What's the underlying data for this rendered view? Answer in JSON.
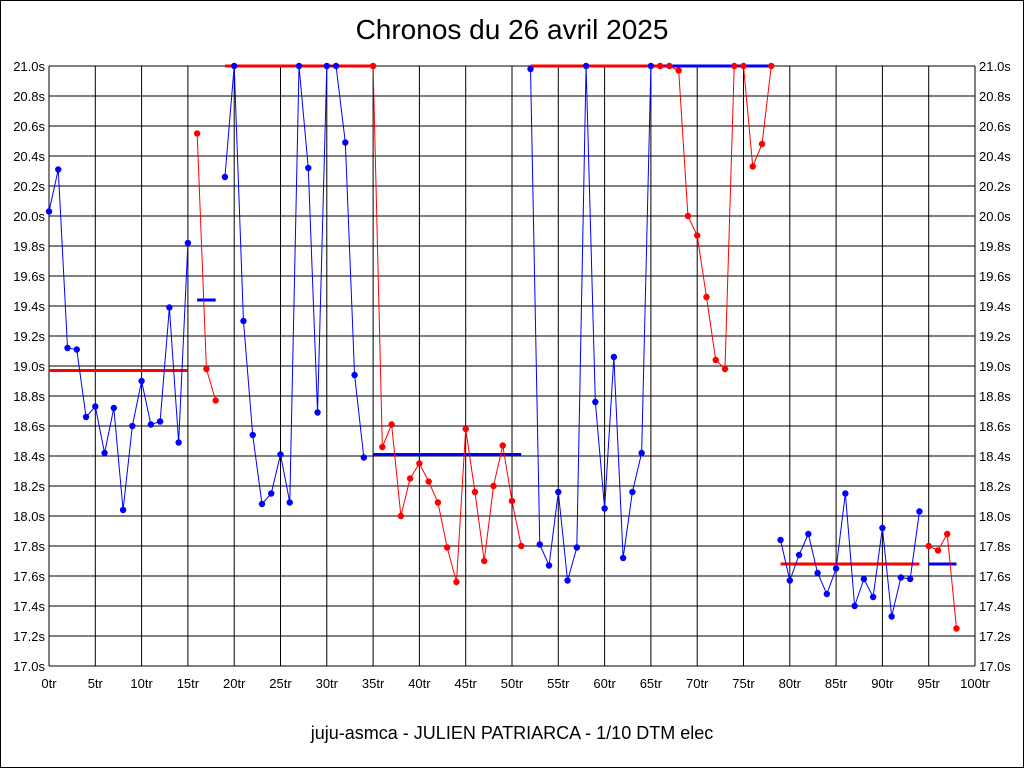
{
  "chart_data": {
    "type": "line",
    "title": "Chronos du 26 avril 2025",
    "footer": "juju-asmca - JULIEN PATRIARCA - 1/10 DTM elec",
    "xlim": [
      0,
      100
    ],
    "ylim": [
      17.0,
      21.0
    ],
    "x_ticks": [
      0,
      5,
      10,
      15,
      20,
      25,
      30,
      35,
      40,
      45,
      50,
      55,
      60,
      65,
      70,
      75,
      80,
      85,
      90,
      95,
      100
    ],
    "x_tick_labels": [
      "0tr",
      "5tr",
      "10tr",
      "15tr",
      "20tr",
      "25tr",
      "30tr",
      "35tr",
      "40tr",
      "45tr",
      "50tr",
      "55tr",
      "60tr",
      "65tr",
      "70tr",
      "75tr",
      "80tr",
      "85tr",
      "90tr",
      "95tr",
      "100tr"
    ],
    "y_ticks": [
      17.0,
      17.2,
      17.4,
      17.6,
      17.8,
      18.0,
      18.2,
      18.4,
      18.6,
      18.8,
      19.0,
      19.2,
      19.4,
      19.6,
      19.8,
      20.0,
      20.2,
      20.4,
      20.6,
      20.8,
      21.0
    ],
    "y_tick_labels": [
      "17.0s",
      "17.2s",
      "17.4s",
      "17.6s",
      "17.8s",
      "18.0s",
      "18.2s",
      "18.4s",
      "18.6s",
      "18.8s",
      "19.0s",
      "19.2s",
      "19.4s",
      "19.6s",
      "19.8s",
      "20.0s",
      "20.2s",
      "20.4s",
      "20.6s",
      "20.8s",
      "21.0s"
    ],
    "grid": true,
    "colors": {
      "blue": "#0000ff",
      "red": "#ff0000"
    },
    "series": [
      {
        "color": "blue",
        "points": [
          [
            0,
            20.03
          ],
          [
            1,
            20.31
          ],
          [
            2,
            19.12
          ],
          [
            3,
            19.11
          ],
          [
            4,
            18.66
          ],
          [
            5,
            18.73
          ],
          [
            6,
            18.42
          ],
          [
            7,
            18.72
          ],
          [
            8,
            18.04
          ],
          [
            9,
            18.6
          ],
          [
            10,
            18.9
          ],
          [
            11,
            18.61
          ],
          [
            12,
            18.63
          ],
          [
            13,
            19.39
          ],
          [
            14,
            18.49
          ],
          [
            15,
            19.82
          ]
        ]
      },
      {
        "color": "red",
        "points": [
          [
            16,
            20.55
          ],
          [
            17,
            18.98
          ],
          [
            18,
            18.77
          ]
        ]
      },
      {
        "color": "blue",
        "points": [
          [
            19,
            20.26
          ],
          [
            20,
            21.0
          ],
          [
            21,
            19.3
          ],
          [
            22,
            18.54
          ],
          [
            23,
            18.08
          ],
          [
            24,
            18.15
          ],
          [
            25,
            18.41
          ],
          [
            26,
            18.09
          ],
          [
            27,
            21.0
          ],
          [
            28,
            20.32
          ],
          [
            29,
            18.69
          ],
          [
            30,
            21.0
          ],
          [
            31,
            21.0
          ],
          [
            32,
            20.49
          ],
          [
            33,
            18.94
          ],
          [
            34,
            18.39
          ]
        ]
      },
      {
        "color": "red",
        "points": [
          [
            35,
            21.0
          ],
          [
            36,
            18.46
          ],
          [
            37,
            18.61
          ],
          [
            38,
            18.0
          ],
          [
            39,
            18.25
          ],
          [
            40,
            18.35
          ],
          [
            41,
            18.23
          ],
          [
            42,
            18.09
          ],
          [
            43,
            17.79
          ],
          [
            44,
            17.56
          ],
          [
            45,
            18.58
          ],
          [
            46,
            18.16
          ],
          [
            47,
            17.7
          ],
          [
            48,
            18.2
          ],
          [
            49,
            18.47
          ],
          [
            50,
            18.1
          ],
          [
            51,
            17.8
          ]
        ]
      },
      {
        "color": "blue",
        "points": [
          [
            52,
            20.98
          ],
          [
            53,
            17.81
          ],
          [
            54,
            17.67
          ],
          [
            55,
            18.16
          ],
          [
            56,
            17.57
          ],
          [
            57,
            17.79
          ],
          [
            58,
            21.0
          ],
          [
            59,
            18.76
          ],
          [
            60,
            18.05
          ],
          [
            61,
            19.06
          ],
          [
            62,
            17.72
          ],
          [
            63,
            18.16
          ],
          [
            64,
            18.42
          ],
          [
            65,
            21.0
          ]
        ]
      },
      {
        "color": "red",
        "points": [
          [
            66,
            21.0
          ],
          [
            67,
            21.0
          ],
          [
            68,
            20.97
          ],
          [
            69,
            20.0
          ],
          [
            70,
            19.87
          ],
          [
            71,
            19.46
          ],
          [
            72,
            19.04
          ],
          [
            73,
            18.98
          ],
          [
            74,
            21.0
          ],
          [
            75,
            21.0
          ],
          [
            76,
            20.33
          ],
          [
            77,
            20.48
          ],
          [
            78,
            21.0
          ]
        ]
      },
      {
        "color": "blue",
        "points": [
          [
            79,
            17.84
          ],
          [
            80,
            17.57
          ],
          [
            81,
            17.74
          ],
          [
            82,
            17.88
          ],
          [
            83,
            17.62
          ],
          [
            84,
            17.48
          ],
          [
            85,
            17.65
          ],
          [
            86,
            18.15
          ],
          [
            87,
            17.4
          ],
          [
            88,
            17.58
          ],
          [
            89,
            17.46
          ],
          [
            90,
            17.92
          ],
          [
            91,
            17.33
          ],
          [
            92,
            17.59
          ],
          [
            93,
            17.58
          ],
          [
            94,
            18.03
          ]
        ]
      },
      {
        "color": "red",
        "points": [
          [
            95,
            17.8
          ],
          [
            96,
            17.77
          ],
          [
            97,
            17.88
          ],
          [
            98,
            17.25
          ]
        ]
      }
    ],
    "average_lines": [
      {
        "color": "red",
        "x": [
          0,
          15
        ],
        "y": 18.97
      },
      {
        "color": "blue",
        "x": [
          16,
          18
        ],
        "y": 19.44
      },
      {
        "color": "red",
        "x": [
          19,
          35
        ],
        "y": 21.0
      },
      {
        "color": "blue",
        "x": [
          35,
          51
        ],
        "y": 18.41
      },
      {
        "color": "red",
        "x": [
          52,
          66
        ],
        "y": 21.0
      },
      {
        "color": "blue",
        "x": [
          66,
          78
        ],
        "y": 21.0
      },
      {
        "color": "red",
        "x": [
          79,
          94
        ],
        "y": 17.68
      },
      {
        "color": "blue",
        "x": [
          95,
          98
        ],
        "y": 17.68
      }
    ]
  }
}
